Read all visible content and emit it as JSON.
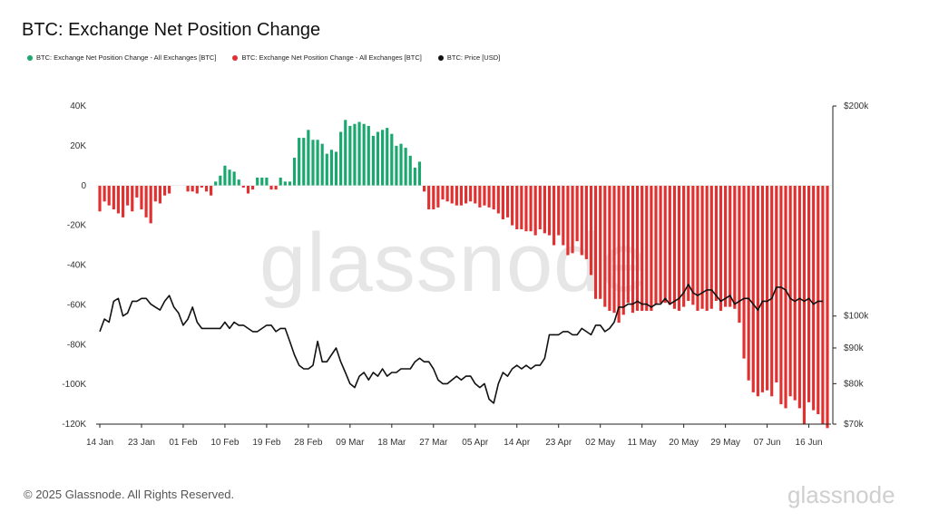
{
  "header": {
    "title": "BTC: Exchange Net Position Change"
  },
  "legend": [
    {
      "label": "BTC: Exchange Net Position Change - All Exchanges [BTC]",
      "color": "#1aa86e"
    },
    {
      "label": "BTC: Exchange Net Position Change - All Exchanges [BTC]",
      "color": "#e03030"
    },
    {
      "label": "BTC: Price [USD]",
      "color": "#111111"
    }
  ],
  "footer": {
    "copyright": "© 2025 Glassnode. All Rights Reserved.",
    "brand": "glassnode",
    "watermark": "glassnode"
  },
  "chart_data": {
    "type": "bar",
    "title": "BTC: Exchange Net Position Change",
    "xlabel": "",
    "ylabel": "",
    "ylim": [
      -120000,
      40000
    ],
    "y2lim_log": [
      70000,
      200000
    ],
    "y_ticks": [
      "40K",
      "20K",
      "0",
      "-20K",
      "-40K",
      "-60K",
      "-80K",
      "-100K",
      "-120K"
    ],
    "y_tick_values": [
      40000,
      20000,
      0,
      -20000,
      -40000,
      -60000,
      -80000,
      -100000,
      -120000
    ],
    "y2_ticks": [
      "$200k",
      "$100k",
      "$90k",
      "$80k",
      "$70k"
    ],
    "y2_tick_values": [
      200000,
      100000,
      90000,
      80000,
      70000
    ],
    "x_ticks": [
      "14 Jan",
      "23 Jan",
      "01 Feb",
      "10 Feb",
      "19 Feb",
      "28 Feb",
      "09 Mar",
      "18 Mar",
      "27 Mar",
      "05 Apr",
      "14 Apr",
      "23 Apr",
      "02 May",
      "11 May",
      "20 May",
      "29 May",
      "07 Jun",
      "16 Jun"
    ],
    "x_tick_index": [
      0,
      9,
      18,
      27,
      36,
      45,
      54,
      63,
      72,
      81,
      90,
      99,
      108,
      117,
      126,
      135,
      144,
      153
    ],
    "colors": {
      "positive": "#1aa86e",
      "negative": "#e03030",
      "price": "#111111"
    },
    "series": [
      {
        "name": "BTC: Exchange Net Position Change - All Exchanges [BTC]",
        "values": [
          -13000,
          -8000,
          -10000,
          -12000,
          -14000,
          -16000,
          -10000,
          -13000,
          -6000,
          -12000,
          -16000,
          -19000,
          -8000,
          -9000,
          -5000,
          -4000,
          0,
          0,
          0,
          -3000,
          -3000,
          -4000,
          -1000,
          -3000,
          -5000,
          2000,
          5000,
          10000,
          8000,
          7000,
          3000,
          -1000,
          -4000,
          -2000,
          4000,
          4000,
          4000,
          -2000,
          -2000,
          4000,
          2000,
          2000,
          14000,
          24000,
          24000,
          28000,
          23000,
          23000,
          21000,
          16000,
          18000,
          17000,
          27000,
          33000,
          30000,
          31000,
          32000,
          31000,
          30000,
          25000,
          27000,
          28000,
          29000,
          26000,
          20000,
          21000,
          19000,
          15000,
          9000,
          12000,
          -3000,
          -12000,
          -12000,
          -11000,
          -7000,
          -8000,
          -9000,
          -10000,
          -10000,
          -9000,
          -8000,
          -9000,
          -11000,
          -10000,
          -11000,
          -12000,
          -14000,
          -17000,
          -16000,
          -20000,
          -22000,
          -22000,
          -23000,
          -23000,
          -25000,
          -22000,
          -24000,
          -25000,
          -30000,
          -25000,
          -30000,
          -35000,
          -34000,
          -28000,
          -35000,
          -37000,
          -45000,
          -57000,
          -57000,
          -61000,
          -63000,
          -64000,
          -69000,
          -65000,
          -59000,
          -64000,
          -63000,
          -63000,
          -63000,
          -63000,
          -60000,
          -59000,
          -59000,
          -60000,
          -62000,
          -63000,
          -61000,
          -58000,
          -60000,
          -63000,
          -62000,
          -63000,
          -62000,
          -58000,
          -63000,
          -61000,
          -61000,
          -62000,
          -69000,
          -87000,
          -98000,
          -104000,
          -106000,
          -104000,
          -103000,
          -106000,
          -99000,
          -110000,
          -112000,
          -106000,
          -108000,
          -112000,
          -120000,
          -109000,
          -113000,
          -115000,
          -120000,
          -122000
        ]
      },
      {
        "name": "BTC: Price [USD]",
        "values": [
          95000,
          99000,
          98000,
          105000,
          106000,
          100000,
          101000,
          105000,
          105000,
          106000,
          106000,
          104000,
          103000,
          102000,
          105000,
          107000,
          103000,
          101000,
          97000,
          99000,
          103000,
          98000,
          96000,
          96000,
          96000,
          96000,
          96000,
          98000,
          96000,
          98000,
          97000,
          97000,
          96000,
          95000,
          95000,
          96000,
          97000,
          97000,
          95000,
          96000,
          96000,
          92000,
          88000,
          85000,
          84000,
          84000,
          85000,
          92000,
          86000,
          86000,
          88000,
          90000,
          86000,
          83000,
          80000,
          79000,
          82000,
          83000,
          81000,
          83000,
          82000,
          84000,
          82000,
          83000,
          83000,
          84000,
          84000,
          84000,
          86000,
          87000,
          86000,
          86000,
          84000,
          81000,
          80000,
          80000,
          81000,
          82000,
          81000,
          82000,
          82000,
          80000,
          79000,
          80000,
          76000,
          75000,
          80000,
          83000,
          82000,
          84000,
          85000,
          84000,
          85000,
          84000,
          85000,
          85000,
          87000,
          94000,
          94000,
          94000,
          95000,
          95000,
          94000,
          94000,
          96000,
          95000,
          94000,
          97000,
          97000,
          95000,
          96000,
          98000,
          103000,
          103000,
          104000,
          104000,
          105000,
          104000,
          104000,
          103000,
          104000,
          104000,
          106000,
          104000,
          105000,
          106000,
          108000,
          111000,
          108000,
          107000,
          108000,
          109000,
          109000,
          107000,
          105000,
          106000,
          107000,
          104000,
          105000,
          106000,
          106000,
          104000,
          102000,
          105000,
          105000,
          106000,
          110000,
          110000,
          109000,
          106000,
          105000,
          106000,
          105000,
          106000,
          104000,
          105000,
          105000
        ]
      }
    ]
  }
}
